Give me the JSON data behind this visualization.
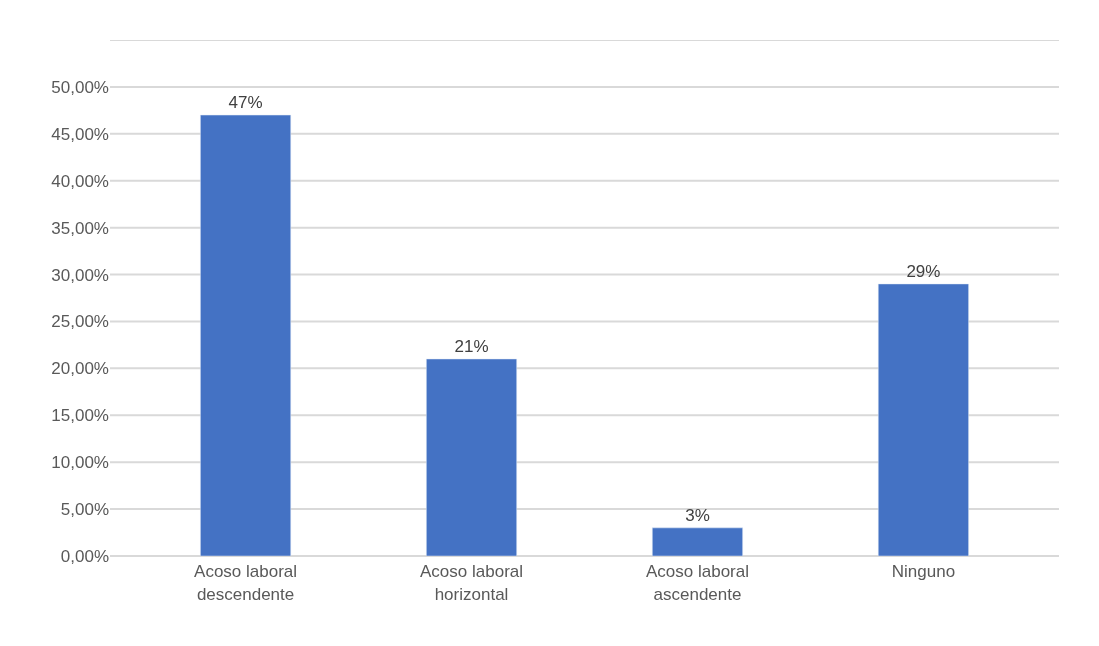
{
  "chart_data": {
    "type": "bar",
    "categories": [
      "Acoso laboral\ndescendente",
      "Acoso laboral\nhorizontal",
      "Acoso laboral\nascendente",
      "Ninguno"
    ],
    "values": [
      47,
      21,
      3,
      29
    ],
    "value_labels": [
      "47%",
      "21%",
      "3%",
      "29%"
    ],
    "color": "#4472c4",
    "ylim": [
      0,
      55
    ],
    "yticks": [
      {
        "value": 0,
        "label": "0,00%"
      },
      {
        "value": 5,
        "label": "5,00%"
      },
      {
        "value": 10,
        "label": "10,00%"
      },
      {
        "value": 15,
        "label": "15,00%"
      },
      {
        "value": 20,
        "label": "20,00%"
      },
      {
        "value": 25,
        "label": "25,00%"
      },
      {
        "value": 30,
        "label": "30,00%"
      },
      {
        "value": 35,
        "label": "35,00%"
      },
      {
        "value": 40,
        "label": "40,00%"
      },
      {
        "value": 45,
        "label": "45,00%"
      },
      {
        "value": 50,
        "label": "50,00%"
      },
      {
        "value": 55,
        "label": null
      }
    ],
    "grid": "y"
  }
}
